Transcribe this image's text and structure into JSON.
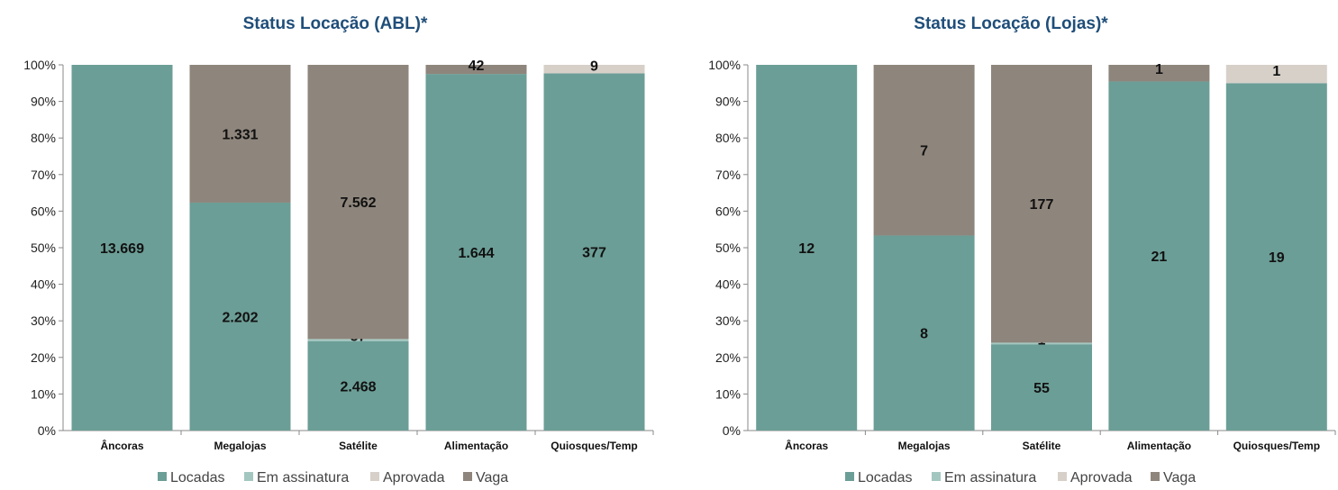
{
  "chart_data": [
    {
      "type": "bar",
      "stacked": "percent",
      "title": "Status Locação (ABL)*",
      "categories": [
        "Âncoras",
        "Megalojas",
        "Satélite",
        "Alimentação",
        "Quiosques/Temp"
      ],
      "series": [
        {
          "name": "Locadas",
          "color": "#6b9e96",
          "values": [
            13669,
            2202,
            2468,
            1644,
            377
          ],
          "labels": [
            "13.669",
            "2.202",
            "2.468",
            "1.644",
            "377"
          ]
        },
        {
          "name": "Em assinatura",
          "color": "#a3c7c0",
          "values": [
            0,
            0,
            57,
            0,
            0
          ],
          "labels": [
            "",
            "",
            "57",
            "",
            ""
          ]
        },
        {
          "name": "Aprovada",
          "color": "#d6d0c9",
          "values": [
            0,
            0,
            0,
            0,
            9
          ],
          "labels": [
            "",
            "",
            "",
            "",
            "9"
          ]
        },
        {
          "name": "Vaga",
          "color": "#8e857c",
          "values": [
            0,
            1331,
            7562,
            42,
            0
          ],
          "labels": [
            "",
            "1.331",
            "7.562",
            "42",
            ""
          ]
        }
      ],
      "y_ticks": [
        "0%",
        "10%",
        "20%",
        "30%",
        "40%",
        "50%",
        "60%",
        "70%",
        "80%",
        "90%",
        "100%"
      ],
      "ylim": [
        0,
        100
      ],
      "grid": false,
      "legend_position": "bottom"
    },
    {
      "type": "bar",
      "stacked": "percent",
      "title": "Status Locação (Lojas)*",
      "categories": [
        "Âncoras",
        "Megalojas",
        "Satélite",
        "Alimentação",
        "Quiosques/Temp"
      ],
      "series": [
        {
          "name": "Locadas",
          "color": "#6b9e96",
          "values": [
            12,
            8,
            55,
            21,
            19
          ],
          "labels": [
            "12",
            "8",
            "55",
            "21",
            "19"
          ]
        },
        {
          "name": "Em assinatura",
          "color": "#a3c7c0",
          "values": [
            0,
            0,
            1,
            0,
            0
          ],
          "labels": [
            "",
            "",
            "1",
            "",
            ""
          ]
        },
        {
          "name": "Aprovada",
          "color": "#d6d0c9",
          "values": [
            0,
            0,
            0,
            0,
            1
          ],
          "labels": [
            "",
            "",
            "",
            "",
            "1"
          ]
        },
        {
          "name": "Vaga",
          "color": "#8e857c",
          "values": [
            0,
            7,
            177,
            1,
            0
          ],
          "labels": [
            "",
            "7",
            "177",
            "1",
            ""
          ]
        }
      ],
      "y_ticks": [
        "0%",
        "10%",
        "20%",
        "30%",
        "40%",
        "50%",
        "60%",
        "70%",
        "80%",
        "90%",
        "100%"
      ],
      "ylim": [
        0,
        100
      ],
      "grid": false,
      "legend_position": "bottom"
    }
  ]
}
